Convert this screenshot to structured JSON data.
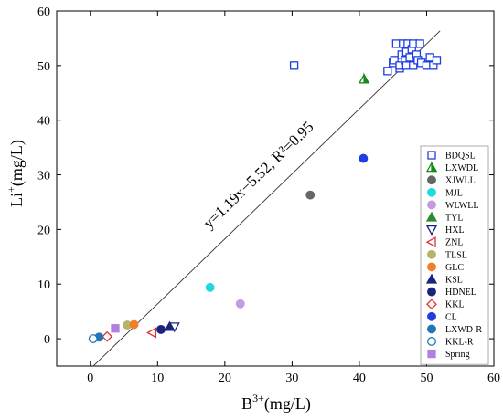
{
  "chart_data": {
    "type": "scatter",
    "xlabel_base": "B",
    "xlabel_sup": "3+",
    "xlabel_unit": "(mg/L)",
    "ylabel_base": "Li",
    "ylabel_sup": "+",
    "ylabel_unit": "(mg/L)",
    "xlim": [
      -5,
      60
    ],
    "ylim": [
      -5,
      60
    ],
    "xticks": [
      0,
      10,
      20,
      30,
      40,
      50,
      60
    ],
    "yticks": [
      0,
      10,
      20,
      30,
      40,
      50,
      60
    ],
    "x_tick_labels": [
      "0",
      "10",
      "20",
      "30",
      "40",
      "50",
      "60"
    ],
    "y_tick_labels": [
      "0",
      "10",
      "20",
      "30",
      "40",
      "50",
      "60"
    ],
    "grid": false,
    "legend_position": "right",
    "fit_line": {
      "slope": 1.19,
      "intercept": -5.52,
      "x_range": [
        0.5,
        52
      ],
      "label": "y=1.19x−5.52, R²=0.95"
    },
    "series": [
      {
        "name": "BDQSL",
        "marker": "square-open",
        "color": "#1f3fe0",
        "points": [
          [
            30.3,
            50
          ],
          [
            44.2,
            49
          ],
          [
            45,
            50.5
          ],
          [
            45.2,
            51
          ],
          [
            45.5,
            54
          ],
          [
            46,
            49.5
          ],
          [
            46,
            50
          ],
          [
            46.3,
            52
          ],
          [
            46.5,
            54
          ],
          [
            46.8,
            51
          ],
          [
            47,
            50
          ],
          [
            47,
            52.5
          ],
          [
            47.2,
            54
          ],
          [
            47.5,
            51.5
          ],
          [
            47.8,
            53
          ],
          [
            48,
            50
          ],
          [
            48,
            54
          ],
          [
            48.5,
            52
          ],
          [
            48.7,
            51
          ],
          [
            49,
            54
          ],
          [
            49.2,
            50.5
          ],
          [
            50,
            50
          ],
          [
            50.5,
            51.5
          ],
          [
            51,
            50
          ],
          [
            51.5,
            51
          ]
        ]
      },
      {
        "name": "LXWDL",
        "marker": "triangle-up-half",
        "color": "#1a8a1a",
        "points": [
          [
            40.7,
            47.5
          ]
        ]
      },
      {
        "name": "XJWLL",
        "marker": "circle",
        "color": "#666666",
        "points": [
          [
            32.7,
            26.3
          ]
        ]
      },
      {
        "name": "MJL",
        "marker": "circle",
        "color": "#22d8e0",
        "points": [
          [
            17.8,
            9.4
          ]
        ]
      },
      {
        "name": "WLWLL",
        "marker": "circle",
        "color": "#c39be0",
        "points": [
          [
            22.3,
            6.4
          ]
        ]
      },
      {
        "name": "TYL",
        "marker": "triangle-up",
        "color": "#2e8b2e",
        "points": []
      },
      {
        "name": "HXL",
        "marker": "triangle-down-open",
        "color": "#1a237e",
        "points": [
          [
            12.5,
            2.2
          ]
        ]
      },
      {
        "name": "ZNL",
        "marker": "triangle-left-open",
        "color": "#e03030",
        "points": [
          [
            9.2,
            1.1
          ]
        ]
      },
      {
        "name": "TLSL",
        "marker": "circle",
        "color": "#b5b56a",
        "points": [
          [
            5.5,
            2.5
          ]
        ]
      },
      {
        "name": "GLC",
        "marker": "circle",
        "color": "#f07f2a",
        "points": [
          [
            6.5,
            2.6
          ]
        ]
      },
      {
        "name": "KSL",
        "marker": "triangle-up",
        "color": "#1a237e",
        "points": [
          [
            11.8,
            2.2
          ]
        ]
      },
      {
        "name": "HDNEL",
        "marker": "circle",
        "color": "#1a237e",
        "points": [
          [
            10.5,
            1.7
          ]
        ]
      },
      {
        "name": "KKL",
        "marker": "diamond-open",
        "color": "#e03030",
        "points": [
          [
            2.5,
            0.4
          ]
        ]
      },
      {
        "name": "CL",
        "marker": "circle",
        "color": "#1f3fe0",
        "points": [
          [
            40.6,
            33
          ]
        ]
      },
      {
        "name": "LXWD-R",
        "marker": "circle",
        "color": "#1f78b4",
        "points": [
          [
            1.3,
            0.3
          ]
        ]
      },
      {
        "name": "KKL-R",
        "marker": "circle-open",
        "color": "#1f78b4",
        "points": [
          [
            0.4,
            0
          ]
        ]
      },
      {
        "name": "Spring",
        "marker": "square",
        "color": "#b07fe0",
        "points": [
          [
            3.7,
            1.9
          ]
        ]
      }
    ]
  }
}
